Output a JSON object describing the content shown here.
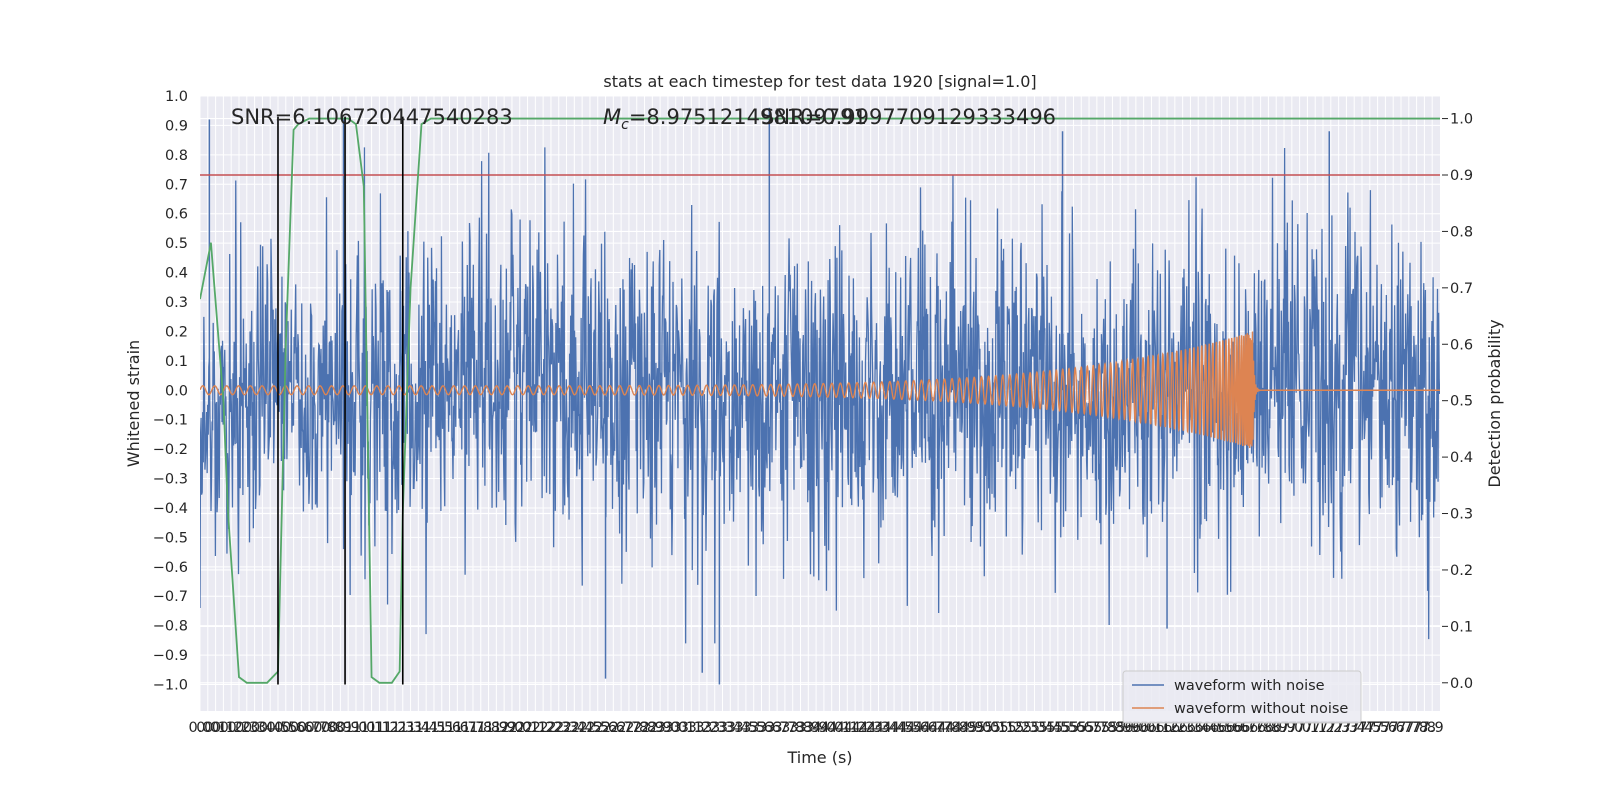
{
  "chart_data": {
    "type": "line",
    "title": "stats at each timestep for test data 1920 [signal=1.0]",
    "xlabel": "Time (s)",
    "ylabel": "Whitened strain",
    "y2label": "Detection probability",
    "xlim": [
      0.0,
      7.95
    ],
    "ylim": [
      -1.09,
      1.0
    ],
    "y2lim": [
      -0.05,
      1.04
    ],
    "x_ticks": [
      0.0,
      0.05,
      0.1,
      0.15,
      0.2,
      0.25,
      0.3,
      0.35,
      0.4,
      0.45,
      0.5,
      0.55,
      0.6,
      0.65,
      0.7,
      0.75,
      0.8,
      0.85,
      0.9,
      0.95,
      1.0,
      1.05,
      1.1,
      1.15,
      1.2,
      1.25,
      1.3,
      1.35,
      1.4,
      1.45,
      1.5,
      1.55,
      1.6,
      1.65,
      1.7,
      1.75,
      1.8,
      1.85,
      1.9,
      1.95,
      2.0,
      2.05,
      2.1,
      2.15,
      2.2,
      2.25,
      2.3,
      2.35,
      2.4,
      2.45,
      2.5,
      2.55,
      2.6,
      2.65,
      2.7,
      2.75,
      2.8,
      2.85,
      2.9,
      2.95,
      3.0,
      3.05,
      3.1,
      3.15,
      3.2,
      3.25,
      3.3,
      3.35,
      3.4,
      3.45,
      3.5,
      3.55,
      3.6,
      3.65,
      3.7,
      3.75,
      3.8,
      3.85,
      3.9,
      3.95,
      4.0,
      4.05,
      4.1,
      4.15,
      4.2,
      4.25,
      4.3,
      4.35,
      4.4,
      4.45,
      4.5,
      4.55,
      4.6,
      4.65,
      4.7,
      4.75,
      4.8,
      4.85,
      4.9,
      4.95,
      5.0,
      5.05,
      5.1,
      5.15,
      5.2,
      5.25,
      5.3,
      5.35,
      5.4,
      5.45,
      5.5,
      5.55,
      5.6,
      5.65,
      5.7,
      5.75,
      5.8,
      5.85,
      5.9,
      5.95,
      6.0,
      6.05,
      6.1,
      6.15,
      6.2,
      6.25,
      6.3,
      6.35,
      6.4,
      6.45,
      6.5,
      6.55,
      6.6,
      6.65,
      6.7,
      6.75,
      6.8,
      6.85,
      6.9,
      6.95,
      7.0,
      7.05,
      7.1,
      7.15,
      7.2,
      7.25,
      7.3,
      7.35,
      7.4,
      7.45,
      7.5,
      7.55,
      7.6,
      7.65,
      7.7,
      7.75,
      7.8,
      7.85,
      7.9
    ],
    "x_tick_labels": [
      "0.0",
      "0.0",
      "0.1",
      "0.1",
      "0.2",
      "0.2",
      "0.3",
      "0.3",
      "0.4",
      "0.4",
      "0.5",
      "0.5",
      "0.6",
      "0.6",
      "0.7",
      "0.7",
      "0.8",
      "0.8",
      "0.9",
      "0.9",
      "1.0",
      "1.0",
      "1.1",
      "1.1",
      "1.2",
      "1.2",
      "1.3",
      "1.3",
      "1.4",
      "1.4",
      "1.5",
      "1.5",
      "1.6",
      "1.6",
      "1.7",
      "1.7",
      "1.8",
      "1.8",
      "1.9",
      "1.9",
      "2.0",
      "2.0",
      "2.1",
      "2.1",
      "2.2",
      "2.2",
      "2.3",
      "2.3",
      "2.4",
      "2.4",
      "2.5",
      "2.5",
      "2.6",
      "2.6",
      "2.7",
      "2.7",
      "2.8",
      "2.8",
      "2.9",
      "2.9",
      "3.0",
      "3.0",
      "3.1",
      "3.1",
      "3.2",
      "3.2",
      "3.3",
      "3.3",
      "3.4",
      "3.4",
      "3.5",
      "3.5",
      "3.6",
      "3.6",
      "3.7",
      "3.7",
      "3.8",
      "3.8",
      "3.9",
      "3.9",
      "4.0",
      "4.0",
      "4.1",
      "4.1",
      "4.2",
      "4.2",
      "4.3",
      "4.3",
      "4.4",
      "4.4",
      "4.5",
      "4.5",
      "4.6",
      "4.6",
      "4.7",
      "4.7",
      "4.8",
      "4.8",
      "4.9",
      "4.9",
      "5.0",
      "5.0",
      "5.1",
      "5.1",
      "5.2",
      "5.2",
      "5.3",
      "5.3",
      "5.4",
      "5.4",
      "5.5",
      "5.5",
      "5.6",
      "5.6",
      "5.7",
      "5.7",
      "5.8",
      "5.8",
      "5.9",
      "5.9",
      "6.0",
      "6.0",
      "6.1",
      "6.1",
      "6.2",
      "6.2",
      "6.3",
      "6.3",
      "6.4",
      "6.4",
      "6.5",
      "6.5",
      "6.6",
      "6.6",
      "6.7",
      "6.7",
      "6.8",
      "6.8",
      "6.9",
      "6.9",
      "7.0",
      "7.0",
      "7.1",
      "7.1",
      "7.2",
      "7.2",
      "7.3",
      "7.3",
      "7.4",
      "7.4",
      "7.5",
      "7.5",
      "7.6",
      "7.6",
      "7.7",
      "7.7",
      "7.8",
      "7.8",
      "7.9"
    ],
    "y_ticks": [
      1.0,
      0.9,
      0.8,
      0.7,
      0.6,
      0.5,
      0.4,
      0.3,
      0.2,
      0.1,
      0.0,
      -0.1,
      -0.2,
      -0.3,
      -0.4,
      -0.5,
      -0.6,
      -0.7,
      -0.8,
      -0.9,
      -1.0
    ],
    "y_tick_labels": [
      "1.0",
      "0.9",
      "0.8",
      "0.7",
      "0.6",
      "0.5",
      "0.4",
      "0.3",
      "0.2",
      "0.1",
      "0.0",
      "−0.1",
      "−0.2",
      "−0.3",
      "−0.4",
      "−0.5",
      "−0.6",
      "−0.7",
      "−0.8",
      "−0.9",
      "−1.0"
    ],
    "y2_ticks": [
      1.0,
      0.9,
      0.8,
      0.7,
      0.6,
      0.5,
      0.4,
      0.3,
      0.2,
      0.1,
      0.0
    ],
    "y2_tick_labels": [
      "1.0",
      "0.9",
      "0.8",
      "0.7",
      "0.6",
      "0.5",
      "0.4",
      "0.3",
      "0.2",
      "0.1",
      "0.0"
    ],
    "annotations": {
      "snr": "SNR=6.106720447540283",
      "mc_symbol": "M",
      "mc_sub": "c",
      "mc_value": "=8.975121498109791",
      "overlap": "SNR=0.9997709129333496"
    },
    "legend": {
      "placement": "lower-right",
      "entries": [
        "waveform with noise",
        "waveform without noise"
      ]
    },
    "grid": true,
    "colors": {
      "noise": "#4c72b0",
      "clean": "#dd8452",
      "probability": "#55a868",
      "threshold": "#c44e52",
      "markers": "#000000",
      "background": "#eaeaf2",
      "grid": "#ffffff"
    },
    "series": [
      {
        "name": "waveform with noise",
        "axis": "left",
        "kind": "noise",
        "x_range": [
          0.0,
          7.95
        ],
        "sample_rate": 1024,
        "envelope": [
          -1.0,
          0.96
        ],
        "peaks": [
          {
            "x": 3.65,
            "y": 0.96
          },
          {
            "x": 0.06,
            "y": 0.92
          },
          {
            "x": 0.92,
            "y": 0.92
          },
          {
            "x": 5.53,
            "y": 0.88
          },
          {
            "x": 7.24,
            "y": 0.88
          },
          {
            "x": 2.6,
            "y": -0.98
          },
          {
            "x": 3.33,
            "y": -1.0
          },
          {
            "x": 3.22,
            "y": -0.96
          },
          {
            "x": 6.2,
            "y": -0.81
          }
        ]
      },
      {
        "name": "waveform without noise",
        "axis": "left",
        "kind": "chirp",
        "start": 0.0,
        "merger": 6.75,
        "end": 7.95,
        "start_amplitude": 0.015,
        "peak_amplitude": 0.2,
        "start_cycles_per_s": 13,
        "peak_cycles_per_s": 150
      },
      {
        "name": "detection probability",
        "axis": "right",
        "x": [
          0.0,
          0.07,
          0.15,
          0.18,
          0.25,
          0.3,
          0.43,
          0.5,
          0.55,
          0.6,
          0.63,
          0.7,
          0.95,
          1.0,
          1.05,
          1.1,
          1.15,
          1.2,
          1.23,
          1.28,
          1.3,
          1.35,
          1.42,
          1.48,
          1.55,
          7.95
        ],
        "y": [
          0.68,
          0.78,
          0.5,
          0.3,
          0.01,
          0.0,
          0.0,
          0.02,
          0.6,
          0.98,
          0.99,
          1.0,
          1.0,
          0.99,
          0.88,
          0.01,
          0.0,
          0.0,
          0.0,
          0.02,
          0.3,
          0.7,
          0.99,
          1.0,
          1.0,
          1.0
        ]
      }
    ],
    "threshold": {
      "axis": "right",
      "y": 0.9
    },
    "markers_x": [
      0.5,
      0.93,
      1.3
    ],
    "marker_y_range": [
      -1.0,
      0.93
    ]
  }
}
